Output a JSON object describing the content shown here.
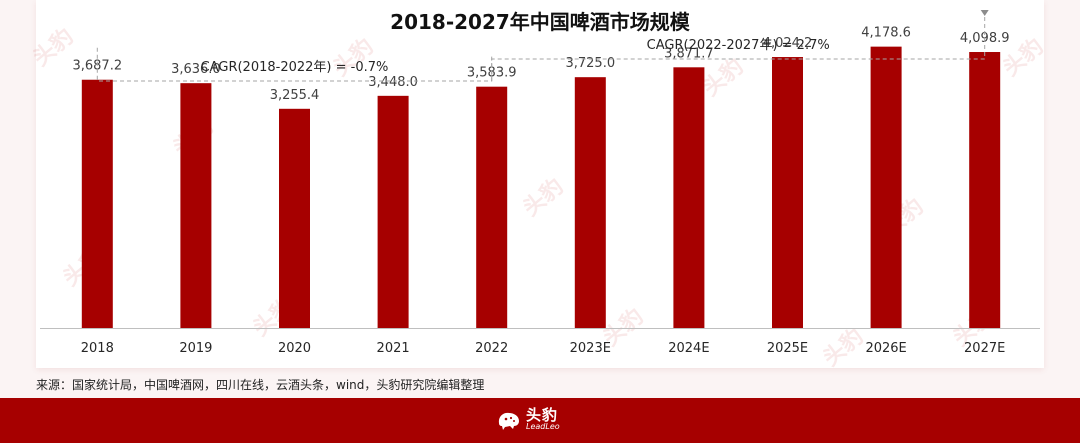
{
  "title": "2018-2027年中国啤酒市场规模",
  "source": "来源：国家统计局，中国啤酒网，四川在线，云酒头条，wind，头豹研究院编辑整理",
  "brand": {
    "name": "头豹",
    "sub": "LeadLeo",
    "color": "#a60000"
  },
  "watermark": "头豹",
  "colors": {
    "bar": "#a60000",
    "label": "#404040",
    "dashed": "#a5a5a5"
  },
  "chart_data": {
    "type": "bar",
    "categories": [
      "2018",
      "2019",
      "2020",
      "2021",
      "2022",
      "2023E",
      "2024E",
      "2025E",
      "2026E",
      "2027E"
    ],
    "values": [
      3687.2,
      3636.0,
      3255.4,
      3448.0,
      3583.9,
      3725.0,
      3871.7,
      4024.2,
      4178.6,
      4098.9
    ],
    "value_labels": [
      "3,687.2",
      "3,636.0",
      "3,255.4",
      "3,448.0",
      "3,583.9",
      "3,725.0",
      "3,871.7",
      "4,024.2",
      "4,178.6",
      "4,098.9"
    ],
    "ylim": [
      0,
      4500
    ],
    "grid": false,
    "annotations": [
      {
        "text": "CAGR(2018-2022年)  =  -0.7%",
        "from": "2018",
        "to": "2022"
      },
      {
        "text": "CAGR(2022-2027年)  =  2.7%",
        "from": "2022",
        "to": "2027E"
      }
    ]
  }
}
